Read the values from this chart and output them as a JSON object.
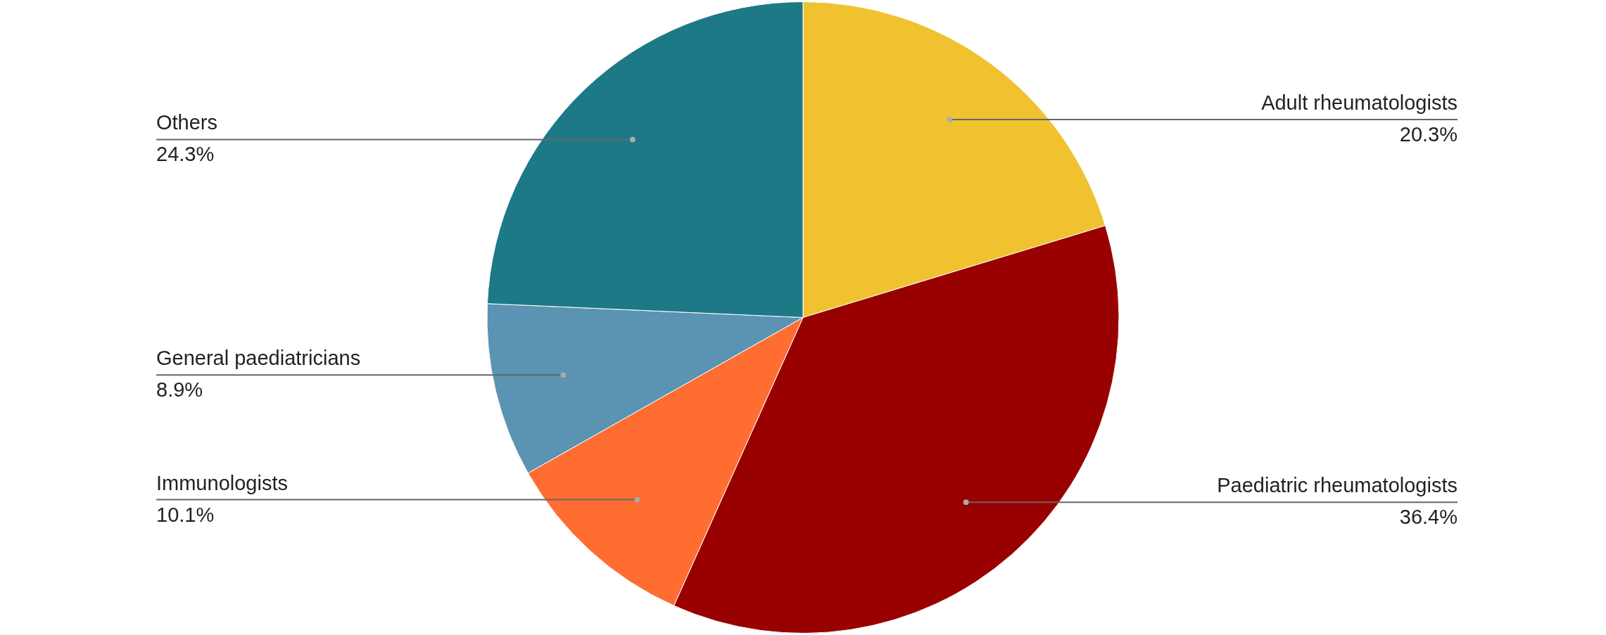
{
  "chart_data": {
    "type": "pie",
    "categories": [
      "Adult rheumatologists",
      "Paediatric rheumatologists",
      "Immunologists",
      "General paediatricians",
      "Others"
    ],
    "values": [
      20.3,
      36.4,
      10.1,
      8.9,
      24.3
    ],
    "colors": [
      "#f0c230",
      "#990000",
      "#ff6d31",
      "#5b93b2",
      "#1e7987"
    ],
    "value_labels": [
      "20.3%",
      "36.4%",
      "10.1%",
      "8.9%",
      "24.3%"
    ]
  }
}
